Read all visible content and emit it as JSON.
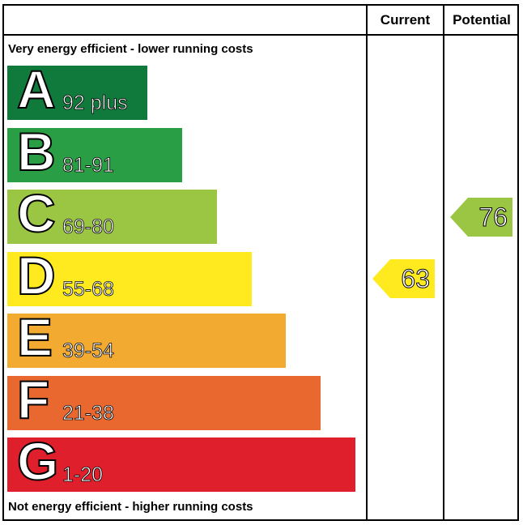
{
  "chart_data": {
    "type": "bar",
    "header": {
      "current_label": "Current",
      "potential_label": "Potential"
    },
    "top_note": "Very energy efficient - lower running costs",
    "bottom_note": "Not energy efficient - higher running costs",
    "bands": [
      {
        "letter": "A",
        "range": "92 plus",
        "min": 92,
        "max": 100,
        "color": "#0f7a3c"
      },
      {
        "letter": "B",
        "range": "81-91",
        "min": 81,
        "max": 91,
        "color": "#2a9e45"
      },
      {
        "letter": "C",
        "range": "69-80",
        "min": 69,
        "max": 80,
        "color": "#9bc643"
      },
      {
        "letter": "D",
        "range": "55-68",
        "min": 55,
        "max": 68,
        "color": "#ffea1f"
      },
      {
        "letter": "E",
        "range": "39-54",
        "min": 39,
        "max": 54,
        "color": "#f2ab30"
      },
      {
        "letter": "F",
        "range": "21-38",
        "min": 21,
        "max": 38,
        "color": "#e86830"
      },
      {
        "letter": "G",
        "range": "1-20",
        "min": 1,
        "max": 20,
        "color": "#df1f2c"
      }
    ],
    "current": {
      "value": 63,
      "band": "D",
      "color": "#ffea1f"
    },
    "potential": {
      "value": 76,
      "band": "C",
      "color": "#9bc643"
    }
  }
}
